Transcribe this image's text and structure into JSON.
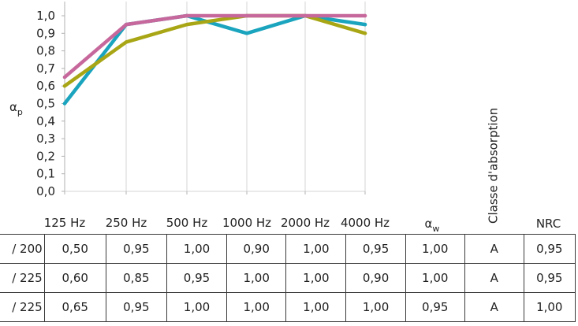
{
  "chart_data": {
    "type": "line",
    "ylabel": "αp",
    "ylim": [
      0,
      1
    ],
    "ytick_labels": [
      "0,0",
      "0,1",
      "0,2",
      "0,3",
      "0,4",
      "0,5",
      "0,6",
      "0,7",
      "0,8",
      "0,9",
      "1,0"
    ],
    "categories": [
      "125 Hz",
      "250 Hz",
      "500 Hz",
      "1000 Hz",
      "2000 Hz",
      "4000 Hz"
    ],
    "grid": true,
    "series": [
      {
        "color": "#1aa4be",
        "values": [
          0.5,
          0.95,
          1.0,
          0.9,
          1.0,
          0.95
        ]
      },
      {
        "color": "#a8a615",
        "values": [
          0.6,
          0.85,
          0.95,
          1.0,
          1.0,
          0.9
        ]
      },
      {
        "color": "#c7689c",
        "values": [
          0.65,
          0.95,
          1.0,
          1.0,
          1.0,
          1.0
        ]
      }
    ]
  },
  "table": {
    "header_aw": "αw",
    "header_class": "Classe d'absorption",
    "header_nrc": "NRC",
    "rows": [
      {
        "label": "/ 200",
        "cells": [
          "0,50",
          "0,95",
          "1,00",
          "0,90",
          "1,00",
          "0,95",
          "1,00",
          "A",
          "0,95"
        ]
      },
      {
        "label": "/ 225",
        "cells": [
          "0,60",
          "0,85",
          "0,95",
          "1,00",
          "1,00",
          "0,90",
          "1,00",
          "A",
          "0,95"
        ]
      },
      {
        "label": "/ 225",
        "cells": [
          "0,65",
          "0,95",
          "1,00",
          "1,00",
          "1,00",
          "1,00",
          "0,95",
          "A",
          "1,00"
        ]
      }
    ]
  }
}
